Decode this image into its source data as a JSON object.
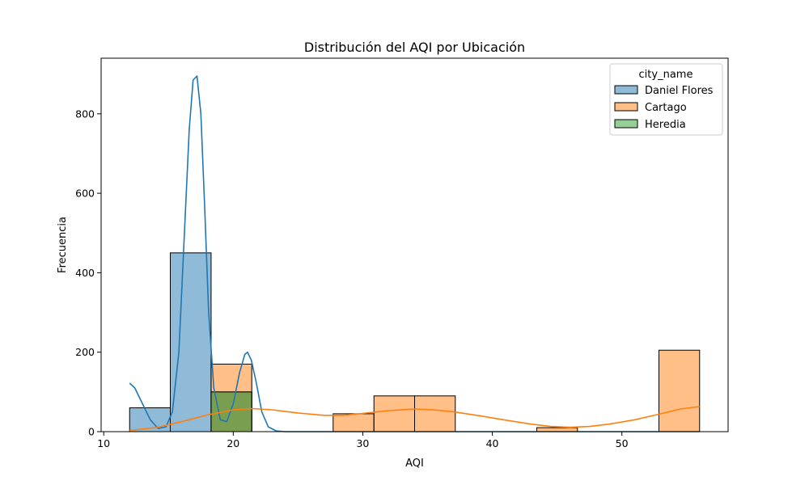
{
  "chart_data": {
    "type": "histogram",
    "title": "Distribución del AQI por Ubicación",
    "xlabel": "AQI",
    "ylabel": "Frecuencia",
    "xlim": [
      9.8,
      58.2
    ],
    "ylim": [
      0,
      940
    ],
    "xticks": [
      10,
      20,
      30,
      40,
      50
    ],
    "yticks": [
      0,
      200,
      400,
      600,
      800
    ],
    "legend": {
      "title": "city_name",
      "position": "top-right",
      "entries": [
        "Daniel Flores",
        "Cartago",
        "Heredia"
      ]
    },
    "bin_edges": [
      12,
      15.14,
      18.29,
      21.43,
      24.57,
      27.71,
      30.86,
      34,
      37.14,
      40.29,
      43.43,
      46.57,
      49.71,
      52.86,
      56
    ],
    "series": [
      {
        "name": "Daniel Flores",
        "color": "#1f77b4",
        "counts": [
          60,
          450,
          100,
          0,
          0,
          0,
          0,
          0,
          0,
          0,
          0,
          0,
          0,
          0
        ],
        "kde": [
          [
            12,
            122
          ],
          [
            12.4,
            110
          ],
          [
            13,
            70
          ],
          [
            13.6,
            30
          ],
          [
            14.2,
            8
          ],
          [
            14.8,
            12
          ],
          [
            15.3,
            50
          ],
          [
            15.8,
            200
          ],
          [
            16.2,
            480
          ],
          [
            16.6,
            760
          ],
          [
            16.9,
            885
          ],
          [
            17.2,
            895
          ],
          [
            17.5,
            800
          ],
          [
            17.8,
            560
          ],
          [
            18.1,
            300
          ],
          [
            18.5,
            110
          ],
          [
            19,
            30
          ],
          [
            19.5,
            25
          ],
          [
            20,
            70
          ],
          [
            20.5,
            150
          ],
          [
            20.9,
            195
          ],
          [
            21.1,
            200
          ],
          [
            21.4,
            180
          ],
          [
            21.8,
            120
          ],
          [
            22.2,
            50
          ],
          [
            22.7,
            12
          ],
          [
            23.3,
            2
          ],
          [
            24,
            0
          ],
          [
            56,
            0
          ]
        ]
      },
      {
        "name": "Cartago",
        "color": "#ff7f0e",
        "counts": [
          0,
          0,
          170,
          0,
          0,
          45,
          90,
          90,
          0,
          0,
          10,
          0,
          0,
          205
        ],
        "kde": [
          [
            12,
            3
          ],
          [
            14,
            10
          ],
          [
            16,
            25
          ],
          [
            18,
            42
          ],
          [
            20,
            55
          ],
          [
            21.5,
            58
          ],
          [
            23,
            55
          ],
          [
            25,
            47
          ],
          [
            27,
            41
          ],
          [
            28.5,
            41
          ],
          [
            30,
            46
          ],
          [
            32,
            53
          ],
          [
            34,
            57
          ],
          [
            35.5,
            55
          ],
          [
            37,
            50
          ],
          [
            39,
            40
          ],
          [
            41,
            29
          ],
          [
            43,
            19
          ],
          [
            44.5,
            13
          ],
          [
            46,
            11
          ],
          [
            47.5,
            13
          ],
          [
            49,
            19
          ],
          [
            51,
            30
          ],
          [
            53,
            45
          ],
          [
            54.5,
            57
          ],
          [
            56,
            63
          ]
        ]
      },
      {
        "name": "Heredia",
        "color": "#2ca02c",
        "counts": [
          0,
          0,
          100,
          0,
          0,
          0,
          0,
          0,
          0,
          0,
          0,
          0,
          0,
          0
        ]
      }
    ]
  }
}
